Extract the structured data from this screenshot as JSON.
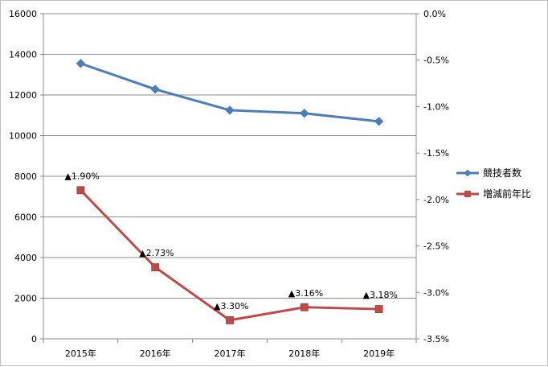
{
  "chart_data": {
    "type": "line",
    "categories": [
      "2015年",
      "2016年",
      "2017年",
      "2018年",
      "2019年"
    ],
    "y_left": {
      "ticks": [
        "0",
        "2000",
        "4000",
        "6000",
        "8000",
        "10000",
        "12000",
        "14000",
        "16000"
      ],
      "ylim": [
        0,
        16000
      ]
    },
    "y_right": {
      "ticks": [
        "0.0%",
        "-0.5%",
        "-1.0%",
        "-1.5%",
        "-2.0%",
        "-2.5%",
        "-3.0%",
        "-3.5%"
      ],
      "ylim": [
        -3.5,
        0.0
      ]
    },
    "grid": true,
    "legend_position": "right",
    "series": [
      {
        "name": "競技者数",
        "axis": "left",
        "color": "#4a7ebb",
        "marker": "diamond",
        "values": [
          13550,
          12280,
          11250,
          11100,
          10700
        ]
      },
      {
        "name": "増減前年比",
        "axis": "right",
        "color": "#be4b48",
        "marker": "square",
        "values": [
          -1.9,
          -2.73,
          -3.3,
          -3.16,
          -3.18
        ],
        "labels": [
          "▲1.90%",
          "▲2.73%",
          "▲3.30%",
          "▲3.16%",
          "▲3.18%"
        ]
      }
    ]
  }
}
